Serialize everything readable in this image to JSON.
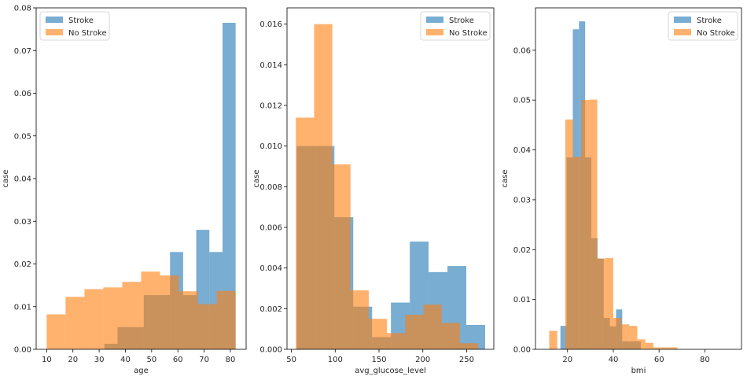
{
  "colors": {
    "stroke": "#1f77b4",
    "no_stroke": "#ff7f0e",
    "alpha": 0.6
  },
  "chart_data": [
    {
      "type": "bar",
      "title": "",
      "xlabel": "age",
      "ylabel": "case",
      "xlim": [
        6,
        86
      ],
      "ylim": [
        0,
        0.08
      ],
      "xticks": [
        10,
        20,
        30,
        40,
        50,
        60,
        70,
        80
      ],
      "yticks": [
        0.0,
        0.01,
        0.02,
        0.03,
        0.04,
        0.05,
        0.06,
        0.07,
        0.08
      ],
      "ytick_labels": [
        "0.00",
        "0.01",
        "0.02",
        "0.03",
        "0.04",
        "0.05",
        "0.06",
        "0.07",
        "0.08"
      ],
      "legend": {
        "position": "top-left",
        "entries": [
          "Stroke",
          "No Stroke"
        ]
      },
      "series": [
        {
          "name": "Stroke",
          "bins": [
            32,
            37,
            42,
            47,
            52,
            57,
            62,
            67,
            72,
            77,
            82
          ],
          "values": [
            0.0013,
            0.0052,
            0.0052,
            0.0127,
            0.0127,
            0.0228,
            0.0127,
            0.028,
            0.0228,
            0.0765
          ]
        },
        {
          "name": "No Stroke",
          "bins": [
            10.0,
            17.2,
            24.4,
            31.6,
            38.8,
            46.0,
            53.2,
            60.4,
            67.6,
            74.8,
            82.0
          ],
          "values": [
            0.0082,
            0.0123,
            0.0141,
            0.0145,
            0.0158,
            0.0182,
            0.0173,
            0.0136,
            0.0106,
            0.0137
          ]
        }
      ]
    },
    {
      "type": "bar",
      "title": "",
      "xlabel": "avg_glucose_level",
      "ylabel": "case",
      "xlim": [
        45,
        281
      ],
      "ylim": [
        0,
        0.0168
      ],
      "xticks": [
        50,
        100,
        150,
        200,
        250
      ],
      "yticks": [
        0.0,
        0.002,
        0.004,
        0.006,
        0.008,
        0.01,
        0.012,
        0.014,
        0.016
      ],
      "ytick_labels": [
        "0.000",
        "0.002",
        "0.004",
        "0.006",
        "0.008",
        "0.010",
        "0.012",
        "0.014",
        "0.016"
      ],
      "legend": {
        "position": "top-right",
        "entries": [
          "Stroke",
          "No Stroke"
        ]
      },
      "series": [
        {
          "name": "Stroke",
          "bins": [
            56.1,
            77.6,
            99.1,
            120.6,
            142.1,
            163.6,
            185.1,
            206.6,
            228.1,
            249.6,
            271.1
          ],
          "values": [
            0.01,
            0.01,
            0.0065,
            0.0021,
            0.0006,
            0.0023,
            0.0053,
            0.0038,
            0.0041,
            0.0012
          ]
        },
        {
          "name": "No Stroke",
          "bins": [
            55.1,
            75.9,
            96.7,
            117.5,
            138.3,
            159.1,
            179.9,
            200.7,
            221.5,
            242.3,
            263.1
          ],
          "values": [
            0.0114,
            0.016,
            0.0091,
            0.0029,
            0.0015,
            0.0008,
            0.0017,
            0.0022,
            0.0013,
            0.0003
          ]
        }
      ]
    },
    {
      "type": "bar",
      "title": "",
      "xlabel": "bmi",
      "ylabel": "case",
      "xlim": [
        6,
        96
      ],
      "ylim": [
        0,
        0.0685
      ],
      "xticks": [
        20,
        40,
        60,
        80
      ],
      "yticks": [
        0.0,
        0.01,
        0.02,
        0.03,
        0.04,
        0.05,
        0.06
      ],
      "ytick_labels": [
        "0.00",
        "0.01",
        "0.02",
        "0.03",
        "0.04",
        "0.05",
        "0.06"
      ],
      "legend": {
        "position": "top-right",
        "entries": [
          "Stroke",
          "No Stroke"
        ]
      },
      "series": [
        {
          "name": "Stroke",
          "bins": [
            16.9,
            19.6,
            22.3,
            25.0,
            27.7,
            30.4,
            33.1,
            35.8,
            38.5,
            41.2,
            43.9,
            46.6,
            49.3,
            52.0,
            54.7,
            57.4
          ],
          "values": [
            0.0047,
            0.0385,
            0.0642,
            0.0658,
            0.0385,
            0.0223,
            0.0182,
            0.0063,
            0.0046,
            0.008,
            0.0016,
            0.0016,
            0.0016,
            0,
            0
          ]
        },
        {
          "name": "No Stroke",
          "bins": [
            12.0,
            15.5,
            19.0,
            22.5,
            26.0,
            29.5,
            33.0,
            36.5,
            40.0,
            43.5,
            47.0,
            50.5,
            54.0,
            57.5,
            61.0,
            64.5,
            68.0
          ],
          "values": [
            0.0037,
            0.0,
            0.0461,
            0.0386,
            0.05,
            0.0501,
            0.0182,
            0.0183,
            0.0063,
            0.005,
            0.0047,
            0.002,
            0.0013,
            0.0004,
            0.0004,
            0.0004
          ]
        }
      ]
    }
  ]
}
